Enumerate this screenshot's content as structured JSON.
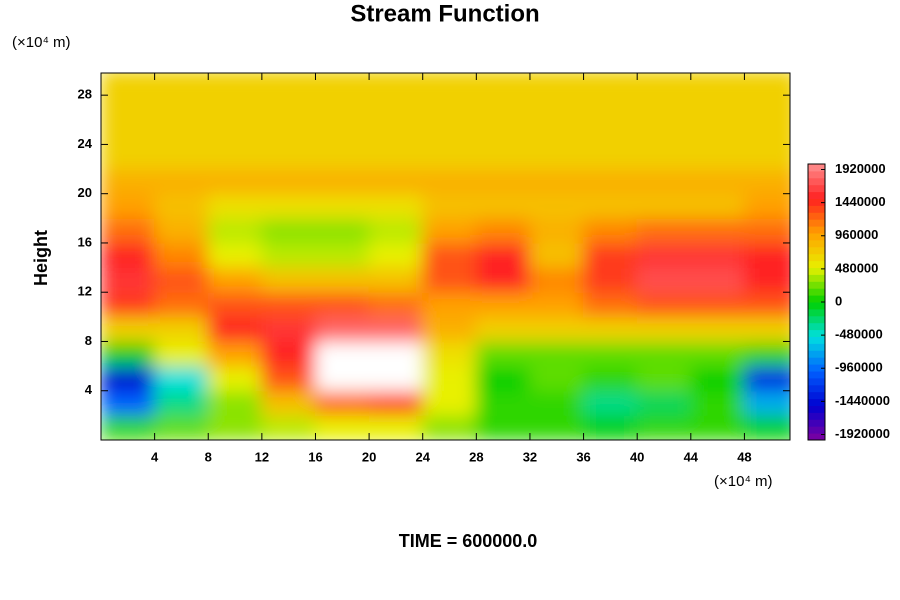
{
  "chart_data": {
    "type": "contour",
    "title": "Stream Function",
    "ylabel": "Height",
    "x_unit": "(×10⁴ m)",
    "y_unit": "(×10⁴ m)",
    "footer": "TIME = 600000.0",
    "x": [
      2,
      6,
      10,
      14,
      18,
      22,
      26,
      30,
      34,
      38,
      42,
      46,
      50
    ],
    "y": [
      1,
      3,
      5,
      7,
      9,
      11,
      13,
      15,
      17,
      19,
      21,
      23,
      25,
      27,
      29
    ],
    "z": [
      [
        100000,
        200000,
        300000,
        400000,
        500000,
        500000,
        300000,
        100000,
        100000,
        0,
        100000,
        100000,
        0
      ],
      [
        -1000000,
        -300000,
        300000,
        800000,
        1200000,
        1300000,
        500000,
        100000,
        100000,
        -300000,
        -200000,
        100000,
        -700000
      ],
      [
        -1500000,
        -500000,
        500000,
        1300000,
        2100000,
        2100000,
        500000,
        0,
        200000,
        100000,
        200000,
        0,
        -1300000
      ],
      [
        0,
        500000,
        1000000,
        1500000,
        2200000,
        2200000,
        600000,
        200000,
        200000,
        200000,
        200000,
        200000,
        100000
      ],
      [
        700000,
        700000,
        1500000,
        1600000,
        1800000,
        1800000,
        900000,
        700000,
        700000,
        700000,
        700000,
        700000,
        700000
      ],
      [
        1400000,
        1200000,
        1300000,
        1300000,
        1300000,
        1200000,
        1000000,
        1000000,
        1000000,
        1200000,
        1300000,
        1300000,
        1300000
      ],
      [
        1600000,
        1300000,
        1000000,
        800000,
        800000,
        800000,
        1300000,
        1500000,
        1100000,
        1400000,
        1700000,
        1700000,
        1500000
      ],
      [
        1500000,
        1100000,
        500000,
        400000,
        400000,
        500000,
        1300000,
        1500000,
        800000,
        1400000,
        1600000,
        1600000,
        1500000
      ],
      [
        1200000,
        900000,
        400000,
        300000,
        300000,
        400000,
        1000000,
        1100000,
        900000,
        1100000,
        1200000,
        1200000,
        1200000
      ],
      [
        1000000,
        800000,
        600000,
        600000,
        600000,
        600000,
        800000,
        800000,
        800000,
        800000,
        800000,
        800000,
        1000000
      ],
      [
        900000,
        900000,
        900000,
        900000,
        900000,
        900000,
        900000,
        900000,
        900000,
        900000,
        900000,
        900000,
        900000
      ],
      [
        700000,
        700000,
        700000,
        700000,
        700000,
        700000,
        700000,
        700000,
        700000,
        700000,
        700000,
        700000,
        700000
      ],
      [
        700000,
        700000,
        700000,
        700000,
        700000,
        700000,
        700000,
        700000,
        700000,
        700000,
        700000,
        700000,
        700000
      ],
      [
        700000,
        700000,
        700000,
        700000,
        700000,
        700000,
        700000,
        700000,
        700000,
        700000,
        700000,
        700000,
        700000
      ],
      [
        700000,
        700000,
        700000,
        700000,
        700000,
        700000,
        700000,
        700000,
        700000,
        700000,
        700000,
        700000,
        700000
      ]
    ],
    "xlim": [
      0,
      51.4
    ],
    "ylim": [
      0,
      29.8
    ],
    "xticks": [
      4,
      8,
      12,
      16,
      20,
      24,
      28,
      32,
      36,
      40,
      44,
      48
    ],
    "yticks": [
      4,
      8,
      12,
      16,
      20,
      24,
      28
    ],
    "clim": [
      -2000000,
      2000000
    ],
    "cticks": [
      -1920000,
      -1440000,
      -960000,
      -480000,
      0,
      480000,
      960000,
      1440000,
      1920000
    ],
    "colormap": [
      "#8000a0",
      "#0000d0",
      "#0060ff",
      "#00e0e0",
      "#00d000",
      "#e8f000",
      "#ffa000",
      "#ff2020",
      "#ff9090"
    ],
    "over_color": "#ffffff"
  }
}
